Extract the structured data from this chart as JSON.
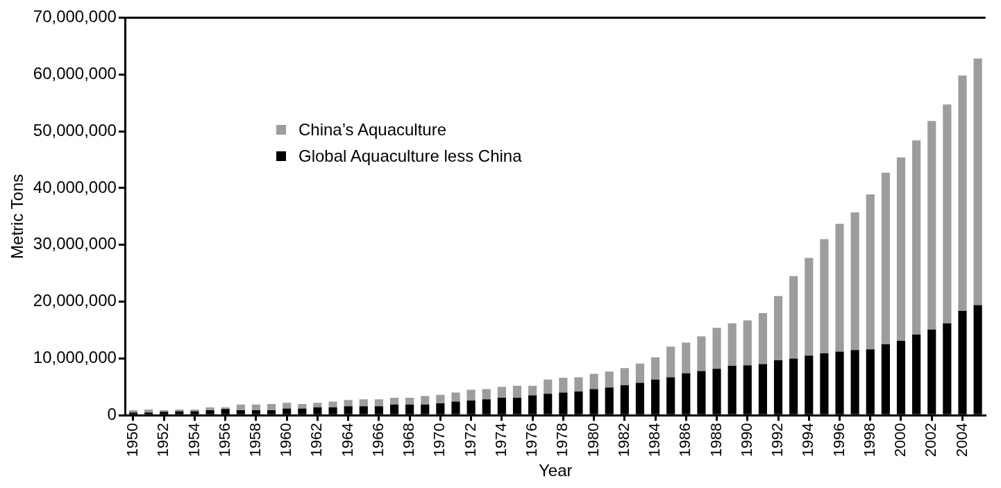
{
  "chart_data": {
    "type": "bar",
    "xlabel": "Year",
    "ylabel": "Metric Tons",
    "stacked": true,
    "legend": "top left",
    "grid": false,
    "categories": [
      "1950",
      null,
      "1952",
      null,
      "1954",
      null,
      "1956",
      null,
      "1958",
      null,
      "1960",
      null,
      "1962",
      null,
      "1964",
      null,
      "1966",
      null,
      "1968",
      null,
      "1970",
      null,
      "1972",
      null,
      "1974",
      null,
      "1976",
      null,
      "1978",
      null,
      "1980",
      null,
      "1982",
      null,
      "1984",
      null,
      "1986",
      null,
      "1988",
      null,
      "1990",
      null,
      "1992",
      null,
      "1994",
      null,
      "1996",
      null,
      "1998",
      null,
      "2000",
      null,
      "2002",
      null,
      "2004",
      null
    ],
    "series": [
      {
        "name": "Global Aquaculture less China",
        "color": "#000000",
        "values": [
          500000,
          500000,
          600000,
          700000,
          700000,
          900000,
          1100000,
          900000,
          900000,
          900000,
          1200000,
          1200000,
          1400000,
          1400000,
          1600000,
          1600000,
          1600000,
          1900000,
          1900000,
          1900000,
          2100000,
          2400000,
          2600000,
          2800000,
          3100000,
          3100000,
          3500000,
          3800000,
          4000000,
          4200000,
          4600000,
          4900000,
          5300000,
          5700000,
          6300000,
          6700000,
          7400000,
          7800000,
          8200000,
          8700000,
          8800000,
          9000000,
          9700000,
          10000000,
          10500000,
          10900000,
          11200000,
          11500000,
          11600000,
          12500000,
          13100000,
          14200000,
          15100000,
          16200000,
          18400000,
          19400000
        ]
      },
      {
        "name": "China’s Aquaculture",
        "color": "#9d9da0",
        "values": [
          400000,
          500000,
          300000,
          300000,
          300000,
          500000,
          300000,
          1000000,
          1000000,
          1100000,
          1000000,
          800000,
          800000,
          1000000,
          1100000,
          1200000,
          1200000,
          1200000,
          1200000,
          1500000,
          1500000,
          1600000,
          1900000,
          1800000,
          1900000,
          2100000,
          1700000,
          2500000,
          2600000,
          2500000,
          2700000,
          2800000,
          3000000,
          3400000,
          3900000,
          5400000,
          5400000,
          6100000,
          7200000,
          7500000,
          7900000,
          9000000,
          11300000,
          14500000,
          17200000,
          20100000,
          22500000,
          24200000,
          27300000,
          30200000,
          32300000,
          34200000,
          36700000,
          38500000,
          41400000,
          43400000
        ]
      }
    ],
    "ylim": [
      0,
      70000000
    ],
    "yticks": [
      0,
      {
        "value": 10000000,
        "label": "10,000,000"
      },
      {
        "value": 20000000,
        "label": "20,000,000"
      },
      {
        "value": 30000000,
        "label": "30,000,000"
      },
      {
        "value": 40000000,
        "label": "40,000,000"
      },
      {
        "value": 50000000,
        "label": "50,000,000"
      },
      {
        "value": 60000000,
        "label": "60,000,000"
      },
      {
        "value": 70000000,
        "label": "70,000,000"
      }
    ]
  }
}
